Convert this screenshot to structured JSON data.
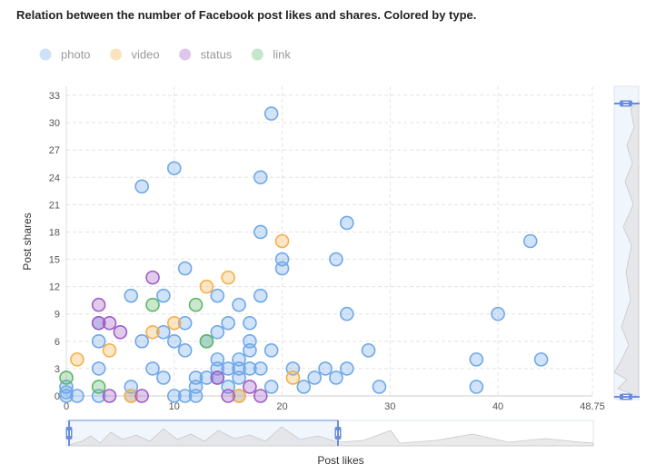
{
  "chart_data": {
    "type": "scatter",
    "title": "Relation between the number of Facebook post likes and shares. Colored by type.",
    "xlabel": "Post likes",
    "ylabel": "Post shares",
    "xlim": [
      0,
      48.75
    ],
    "ylim": [
      0,
      34
    ],
    "x_ticks": [
      "0",
      "10",
      "20",
      "30",
      "40",
      "48.75"
    ],
    "y_ticks": [
      "0",
      "3",
      "6",
      "9",
      "12",
      "15",
      "18",
      "21",
      "24",
      "27",
      "30",
      "33"
    ],
    "grid": true,
    "legend_position": "top-left",
    "series": [
      {
        "name": "photo",
        "color": "#6fa8e8",
        "points": [
          [
            0,
            0
          ],
          [
            0,
            0.4
          ],
          [
            0,
            1
          ],
          [
            1,
            0
          ],
          [
            3,
            0
          ],
          [
            3,
            3
          ],
          [
            3,
            6
          ],
          [
            3,
            8
          ],
          [
            6,
            0
          ],
          [
            6,
            1
          ],
          [
            6,
            11
          ],
          [
            7,
            6
          ],
          [
            7,
            23
          ],
          [
            8,
            3
          ],
          [
            9,
            2
          ],
          [
            9,
            7
          ],
          [
            9,
            11
          ],
          [
            10,
            0
          ],
          [
            10,
            6
          ],
          [
            10,
            25
          ],
          [
            11,
            0
          ],
          [
            11,
            5
          ],
          [
            11,
            8
          ],
          [
            11,
            14
          ],
          [
            12,
            0
          ],
          [
            12,
            1
          ],
          [
            12,
            2
          ],
          [
            13,
            2
          ],
          [
            13,
            6
          ],
          [
            14,
            2
          ],
          [
            14,
            3
          ],
          [
            14,
            4
          ],
          [
            14,
            7
          ],
          [
            14,
            11
          ],
          [
            15,
            1
          ],
          [
            15,
            3
          ],
          [
            15,
            8
          ],
          [
            16,
            0
          ],
          [
            16,
            2
          ],
          [
            16,
            3
          ],
          [
            16,
            4
          ],
          [
            16,
            10
          ],
          [
            17,
            3
          ],
          [
            17,
            5
          ],
          [
            17,
            6
          ],
          [
            17,
            8
          ],
          [
            18,
            3
          ],
          [
            18,
            11
          ],
          [
            18,
            18
          ],
          [
            18,
            24
          ],
          [
            19,
            1
          ],
          [
            19,
            5
          ],
          [
            19,
            31
          ],
          [
            20,
            14
          ],
          [
            20,
            15
          ],
          [
            21,
            3
          ],
          [
            22,
            1
          ],
          [
            23,
            2
          ],
          [
            24,
            3
          ],
          [
            25,
            2
          ],
          [
            25,
            15
          ],
          [
            26,
            3
          ],
          [
            26,
            9
          ],
          [
            26,
            19
          ],
          [
            28,
            5
          ],
          [
            29,
            1
          ],
          [
            38,
            1
          ],
          [
            38,
            4
          ],
          [
            40,
            9
          ],
          [
            43,
            17
          ],
          [
            44,
            4
          ]
        ]
      },
      {
        "name": "video",
        "color": "#f5b04a",
        "points": [
          [
            1,
            4
          ],
          [
            4,
            5
          ],
          [
            6,
            0
          ],
          [
            8,
            7
          ],
          [
            10,
            8
          ],
          [
            13,
            12
          ],
          [
            15,
            13
          ],
          [
            16,
            0
          ],
          [
            20,
            17
          ],
          [
            21,
            2
          ]
        ]
      },
      {
        "name": "status",
        "color": "#a05cc8",
        "points": [
          [
            3,
            8
          ],
          [
            3,
            10
          ],
          [
            4,
            0
          ],
          [
            4,
            8
          ],
          [
            5,
            7
          ],
          [
            7,
            0
          ],
          [
            8,
            13
          ],
          [
            14,
            2
          ],
          [
            15,
            0
          ],
          [
            17,
            1
          ],
          [
            18,
            0
          ]
        ]
      },
      {
        "name": "link",
        "color": "#5cb866",
        "points": [
          [
            0,
            2
          ],
          [
            3,
            1
          ],
          [
            8,
            10
          ],
          [
            12,
            10
          ],
          [
            13,
            6
          ]
        ]
      }
    ]
  }
}
